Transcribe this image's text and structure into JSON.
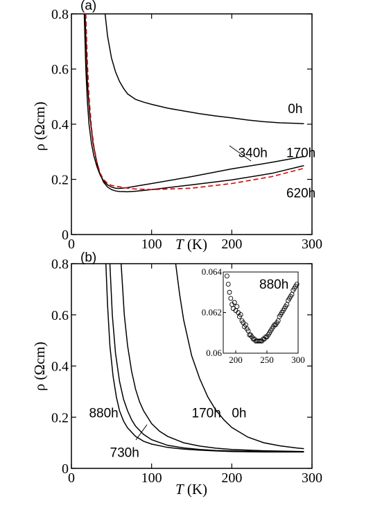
{
  "chart_data": [
    {
      "type": "line",
      "panel_label": "(a)",
      "xlabel_symbol": "T",
      "xlabel_unit": " (K)",
      "ylabel": "ρ (Ωcm)",
      "xlim": [
        0,
        300
      ],
      "ylim": [
        0,
        0.8
      ],
      "xticks": [
        0,
        100,
        200,
        300
      ],
      "xtick_labels": [
        "0",
        "100",
        "200",
        "300"
      ],
      "yticks": [
        0,
        0.2,
        0.4,
        0.6,
        0.8
      ],
      "ytick_labels": [
        "0",
        "0.2",
        "0.4",
        "0.6",
        "0.8"
      ],
      "grid": false,
      "series": [
        {
          "name": "0h",
          "color": "#000000",
          "dash": "solid",
          "x": [
            42,
            45,
            50,
            55,
            60,
            65,
            70,
            80,
            90,
            100,
            120,
            140,
            160,
            180,
            200,
            220,
            240,
            260,
            280,
            290
          ],
          "y": [
            0.8,
            0.72,
            0.64,
            0.59,
            0.555,
            0.53,
            0.51,
            0.49,
            0.48,
            0.472,
            0.458,
            0.448,
            0.438,
            0.43,
            0.423,
            0.415,
            0.409,
            0.405,
            0.403,
            0.402
          ]
        },
        {
          "name": "340h",
          "color": "#000000",
          "dash": "solid",
          "x": [
            16,
            18,
            20,
            22,
            25,
            28,
            32,
            36,
            40,
            45,
            50,
            55,
            60,
            70,
            80,
            100,
            150,
            200,
            250,
            290
          ],
          "y": [
            0.8,
            0.6,
            0.48,
            0.4,
            0.33,
            0.285,
            0.245,
            0.215,
            0.195,
            0.18,
            0.172,
            0.168,
            0.167,
            0.17,
            0.175,
            0.185,
            0.21,
            0.238,
            0.262,
            0.283
          ]
        },
        {
          "name": "170h",
          "color": "#000000",
          "dash": "solid",
          "x": [
            17,
            20,
            23,
            27,
            31,
            35,
            40,
            45,
            50,
            55,
            60,
            70,
            80,
            100,
            150,
            200,
            250,
            290
          ],
          "y": [
            0.8,
            0.55,
            0.43,
            0.33,
            0.27,
            0.225,
            0.19,
            0.172,
            0.163,
            0.158,
            0.156,
            0.155,
            0.157,
            0.163,
            0.18,
            0.198,
            0.222,
            0.25
          ]
        },
        {
          "name": "620h",
          "color": "#dd0000",
          "dash": "dashed",
          "x": [
            18,
            20,
            22,
            25,
            28,
            32,
            36,
            40,
            45,
            50,
            55,
            60,
            70,
            80,
            100,
            150,
            200,
            250,
            290
          ],
          "y": [
            0.8,
            0.62,
            0.5,
            0.39,
            0.32,
            0.26,
            0.222,
            0.2,
            0.185,
            0.178,
            0.175,
            0.173,
            0.168,
            0.165,
            0.163,
            0.168,
            0.185,
            0.21,
            0.24
          ]
        }
      ],
      "labels": [
        {
          "text": "0h",
          "x": 270,
          "y": 0.44
        },
        {
          "text": "340h",
          "x": 208,
          "y": 0.28
        },
        {
          "text": "170h",
          "x": 268,
          "y": 0.28
        },
        {
          "text": "620h",
          "x": 268,
          "y": 0.135
        }
      ]
    },
    {
      "type": "line",
      "panel_label": "(b)",
      "xlabel_symbol": "T",
      "xlabel_unit": " (K)",
      "ylabel": "ρ (Ωcm)",
      "xlim": [
        0,
        300
      ],
      "ylim": [
        0,
        0.8
      ],
      "xticks": [
        0,
        100,
        200,
        300
      ],
      "xtick_labels": [
        "0",
        "100",
        "200",
        "300"
      ],
      "yticks": [
        0,
        0.2,
        0.4,
        0.6,
        0.8
      ],
      "ytick_labels": [
        "0",
        "0.2",
        "0.4",
        "0.6",
        "0.8"
      ],
      "grid": false,
      "series": [
        {
          "name": "880h",
          "color": "#000000",
          "dash": "solid",
          "x": [
            43,
            45,
            48,
            52,
            56,
            60,
            65,
            70,
            80,
            90,
            100,
            120,
            140,
            160,
            180,
            200,
            240,
            290
          ],
          "y": [
            0.8,
            0.64,
            0.48,
            0.36,
            0.28,
            0.225,
            0.185,
            0.158,
            0.125,
            0.106,
            0.095,
            0.082,
            0.075,
            0.071,
            0.068,
            0.066,
            0.064,
            0.064
          ]
        },
        {
          "name": "730h",
          "color": "#000000",
          "dash": "solid",
          "x": [
            48,
            51,
            55,
            60,
            65,
            70,
            75,
            80,
            90,
            100,
            120,
            140,
            160,
            180,
            200,
            240,
            290
          ],
          "y": [
            0.8,
            0.6,
            0.45,
            0.34,
            0.27,
            0.225,
            0.19,
            0.165,
            0.133,
            0.112,
            0.09,
            0.08,
            0.074,
            0.07,
            0.068,
            0.066,
            0.065
          ]
        },
        {
          "name": "170h",
          "color": "#000000",
          "dash": "solid",
          "x": [
            62,
            66,
            70,
            75,
            80,
            85,
            90,
            100,
            110,
            120,
            140,
            160,
            180,
            200,
            240,
            290
          ],
          "y": [
            0.8,
            0.6,
            0.48,
            0.38,
            0.31,
            0.26,
            0.225,
            0.175,
            0.145,
            0.125,
            0.1,
            0.087,
            0.079,
            0.074,
            0.069,
            0.066
          ]
        },
        {
          "name": "0h",
          "color": "#000000",
          "dash": "solid",
          "x": [
            130,
            135,
            140,
            150,
            160,
            170,
            180,
            190,
            200,
            220,
            240,
            260,
            280,
            290
          ],
          "y": [
            0.8,
            0.68,
            0.58,
            0.44,
            0.35,
            0.28,
            0.228,
            0.19,
            0.16,
            0.122,
            0.1,
            0.088,
            0.08,
            0.077
          ]
        }
      ],
      "labels": [
        {
          "text": "880h",
          "x": 22,
          "y": 0.2
        },
        {
          "text": "730h",
          "x": 48,
          "y": 0.045
        },
        {
          "text": "170h",
          "x": 150,
          "y": 0.2
        },
        {
          "text": "0h",
          "x": 200,
          "y": 0.2
        }
      ],
      "inset": {
        "type": "scatter",
        "marker": "open-circle",
        "label": "880h",
        "xlim": [
          180,
          300
        ],
        "ylim": [
          0.06,
          0.064
        ],
        "xticks": [
          200,
          250,
          300
        ],
        "xtick_labels": [
          "200",
          "250",
          "300"
        ],
        "yticks": [
          0.06,
          0.062,
          0.064
        ],
        "ytick_labels": [
          "0.06",
          "0.062",
          "0.064"
        ],
        "x": [
          186,
          188,
          190,
          192,
          194,
          196,
          198,
          200,
          202,
          204,
          206,
          208,
          210,
          212,
          214,
          216,
          218,
          220,
          222,
          224,
          226,
          228,
          230,
          232,
          234,
          236,
          238,
          240,
          242,
          244,
          246,
          248,
          250,
          252,
          254,
          256,
          258,
          260,
          262,
          264,
          266,
          268,
          270,
          272,
          274,
          276,
          278,
          280,
          282,
          284,
          286,
          288,
          290,
          292,
          294,
          296,
          298
        ],
        "y": [
          0.0638,
          0.0634,
          0.063,
          0.0627,
          0.0624,
          0.0622,
          0.0625,
          0.0621,
          0.0623,
          0.062,
          0.0618,
          0.0619,
          0.0616,
          0.0615,
          0.0613,
          0.0614,
          0.0612,
          0.0611,
          0.0609,
          0.0609,
          0.0608,
          0.0607,
          0.0607,
          0.0606,
          0.0606,
          0.0606,
          0.0606,
          0.0606,
          0.0606,
          0.0607,
          0.0607,
          0.0608,
          0.0608,
          0.0609,
          0.061,
          0.0611,
          0.0612,
          0.0613,
          0.0614,
          0.0614,
          0.0615,
          0.0616,
          0.0618,
          0.0619,
          0.062,
          0.0621,
          0.0622,
          0.0623,
          0.0624,
          0.0626,
          0.0627,
          0.0628,
          0.0629,
          0.0631,
          0.0632,
          0.0633,
          0.0634
        ]
      }
    }
  ]
}
